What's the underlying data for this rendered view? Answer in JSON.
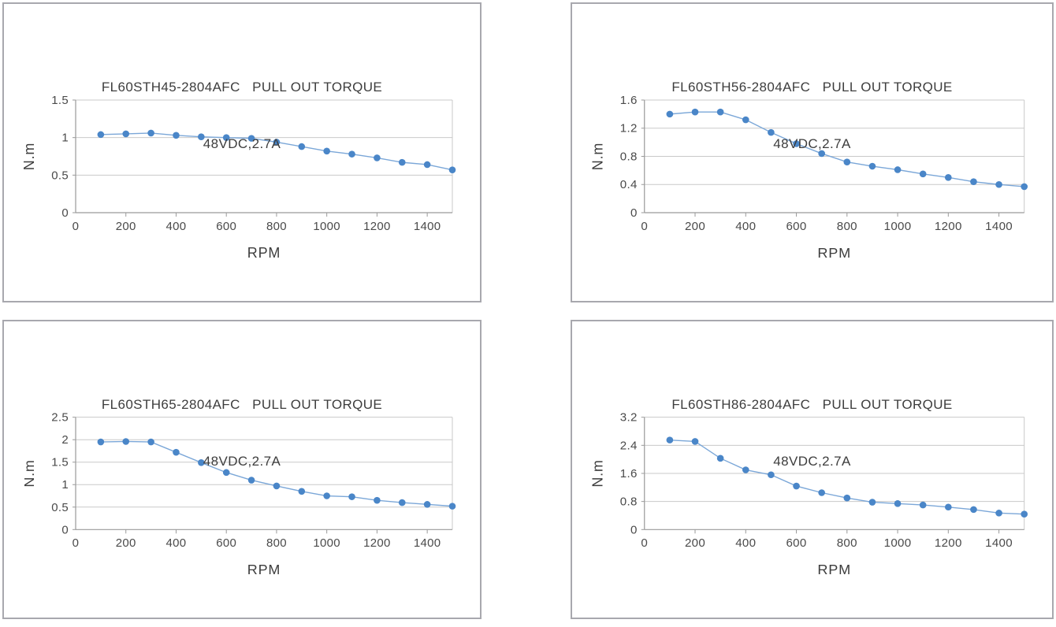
{
  "style": {
    "line": "#7ba7d8",
    "marker": "#4a86c8",
    "gridline": "#c9c9c9",
    "axis": "#9a9a9a",
    "panel_border": "#a8a8ae",
    "title_color": "#3d3d3d",
    "tick_color": "#4a4a4a",
    "background": "#ffffff"
  },
  "chart_data": [
    {
      "type": "line",
      "title_line1": "FL60STH45-2804AFC   PULL OUT TORQUE",
      "title_line2": "48VDC,2.7A",
      "xlabel": "RPM",
      "ylabel": "N.m",
      "x": [
        100,
        200,
        300,
        400,
        500,
        600,
        700,
        800,
        900,
        1000,
        1100,
        1200,
        1300,
        1400,
        1500
      ],
      "values": [
        1.04,
        1.05,
        1.06,
        1.03,
        1.01,
        1.0,
        0.99,
        0.94,
        0.88,
        0.82,
        0.78,
        0.73,
        0.67,
        0.64,
        0.57
      ],
      "xlim": [
        0,
        1500
      ],
      "ylim": [
        0,
        1.5
      ],
      "xticks": [
        0,
        200,
        400,
        600,
        800,
        1000,
        1200,
        1400
      ],
      "yticks": [
        0,
        0.5,
        1,
        1.5
      ],
      "ytick_labels": [
        "0",
        "0.5",
        "1",
        "1.5"
      ],
      "grid": "horizontal",
      "legend": "none"
    },
    {
      "type": "line",
      "title_line1": "FL60STH56-2804AFC   PULL OUT TORQUE",
      "title_line2": "48VDC,2.7A",
      "xlabel": "RPM",
      "ylabel": "N.m",
      "x": [
        100,
        200,
        300,
        400,
        500,
        600,
        700,
        800,
        900,
        1000,
        1100,
        1200,
        1300,
        1400,
        1500
      ],
      "values": [
        1.4,
        1.43,
        1.43,
        1.32,
        1.14,
        0.98,
        0.84,
        0.72,
        0.66,
        0.61,
        0.55,
        0.5,
        0.44,
        0.4,
        0.37
      ],
      "xlim": [
        0,
        1500
      ],
      "ylim": [
        0,
        1.6
      ],
      "xticks": [
        0,
        200,
        400,
        600,
        800,
        1000,
        1200,
        1400
      ],
      "yticks": [
        0,
        0.4,
        0.8,
        1.2,
        1.6
      ],
      "ytick_labels": [
        "0",
        "0.4",
        "0.8",
        "1.2",
        "1.6"
      ],
      "grid": "horizontal",
      "legend": "none"
    },
    {
      "type": "line",
      "title_line1": "FL60STH65-2804AFC   PULL OUT TORQUE",
      "title_line2": "48VDC,2.7A",
      "xlabel": "RPM",
      "ylabel": "N.m",
      "x": [
        100,
        200,
        300,
        400,
        500,
        600,
        700,
        800,
        900,
        1000,
        1100,
        1200,
        1300,
        1400,
        1500
      ],
      "values": [
        1.95,
        1.96,
        1.95,
        1.72,
        1.49,
        1.27,
        1.1,
        0.97,
        0.85,
        0.75,
        0.73,
        0.65,
        0.6,
        0.56,
        0.52
      ],
      "xlim": [
        0,
        1500
      ],
      "ylim": [
        0,
        2.5
      ],
      "xticks": [
        0,
        200,
        400,
        600,
        800,
        1000,
        1200,
        1400
      ],
      "yticks": [
        0,
        0.5,
        1,
        1.5,
        2,
        2.5
      ],
      "ytick_labels": [
        "0",
        "0.5",
        "1",
        "1.5",
        "2",
        "2.5"
      ],
      "grid": "horizontal",
      "legend": "none"
    },
    {
      "type": "line",
      "title_line1": "FL60STH86-2804AFC   PULL OUT TORQUE",
      "title_line2": "48VDC,2.7A",
      "xlabel": "RPM",
      "ylabel": "N.m",
      "x": [
        100,
        200,
        300,
        400,
        500,
        600,
        700,
        800,
        900,
        1000,
        1100,
        1200,
        1300,
        1400,
        1500
      ],
      "values": [
        2.55,
        2.51,
        2.03,
        1.7,
        1.56,
        1.24,
        1.05,
        0.9,
        0.78,
        0.74,
        0.7,
        0.64,
        0.57,
        0.47,
        0.44
      ],
      "xlim": [
        0,
        1500
      ],
      "ylim": [
        0,
        3.2
      ],
      "xticks": [
        0,
        200,
        400,
        600,
        800,
        1000,
        1200,
        1400
      ],
      "yticks": [
        0,
        0.8,
        1.6,
        2.4,
        3.2
      ],
      "ytick_labels": [
        "0",
        "0.8",
        "1.6",
        "2.4",
        "3.2"
      ],
      "grid": "horizontal",
      "legend": "none"
    }
  ]
}
